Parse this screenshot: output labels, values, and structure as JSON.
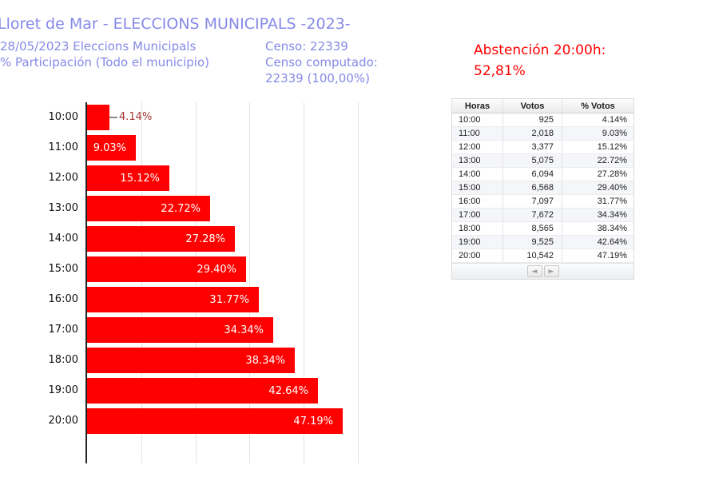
{
  "header": {
    "title": "Lloret de Mar - ELECCIONS MUNICIPALS -2023-",
    "date_line": "28/05/2023 Eleccions Municipals",
    "participation_line": "% Participación (Todo el municipio)",
    "censo_line": "Censo: 22339",
    "censo_computado_line1": "Censo computado:",
    "censo_computado_line2": "22339 (100,00%)",
    "abstencion_line1": "Abstención 20:00h:",
    "abstencion_line2": "52,81%"
  },
  "colors": {
    "header_text": "#8589e8",
    "abstencion_text": "#ff0000",
    "bar": "#ff0000",
    "outside_bar_label": "#a83434",
    "connector": "#8a8a8a",
    "gridline": "#e0e0e0"
  },
  "chart_data": {
    "type": "bar",
    "orientation": "horizontal",
    "title": "% Participación (Todo el municipio)",
    "categories": [
      "10:00",
      "11:00",
      "12:00",
      "13:00",
      "14:00",
      "15:00",
      "16:00",
      "17:00",
      "18:00",
      "19:00",
      "20:00"
    ],
    "values": [
      4.14,
      9.03,
      15.12,
      22.72,
      27.28,
      29.4,
      31.77,
      34.34,
      38.34,
      42.64,
      47.19
    ],
    "bar_labels": [
      "4.14%",
      "9.03%",
      "15.12%",
      "22.72%",
      "27.28%",
      "29.40%",
      "31.77%",
      "34.34%",
      "38.34%",
      "42.64%",
      "47.19%"
    ],
    "votes": [
      925,
      2018,
      3377,
      5075,
      6094,
      6568,
      7097,
      7672,
      8565,
      9525,
      10542
    ],
    "xlim": [
      0,
      51
    ],
    "xticks": [
      10,
      20,
      30,
      40,
      50
    ],
    "grid": true,
    "legend": "none",
    "bar_color": "#ff0000"
  },
  "table": {
    "columns": [
      "Horas",
      "Votos",
      "% Votos"
    ],
    "rows": [
      [
        "10:00",
        "925",
        "4.14%"
      ],
      [
        "11:00",
        "2,018",
        "9.03%"
      ],
      [
        "12:00",
        "3,377",
        "15.12%"
      ],
      [
        "13:00",
        "5,075",
        "22.72%"
      ],
      [
        "14:00",
        "6,094",
        "27.28%"
      ],
      [
        "15:00",
        "6,568",
        "29.40%"
      ],
      [
        "16:00",
        "7,097",
        "31.77%"
      ],
      [
        "17:00",
        "7,672",
        "34.34%"
      ],
      [
        "18:00",
        "8,565",
        "38.34%"
      ],
      [
        "19:00",
        "9,525",
        "42.64%"
      ],
      [
        "20:00",
        "10,542",
        "47.19%"
      ]
    ],
    "pagination": {
      "prev_icon": "◄",
      "next_icon": "►"
    }
  }
}
